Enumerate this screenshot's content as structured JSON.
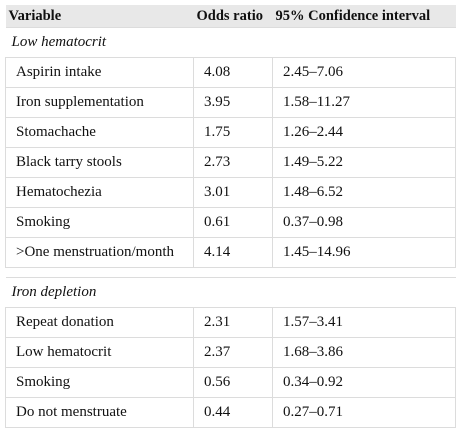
{
  "table": {
    "header": [
      "Variable",
      "Odds ratio",
      "95% Confidence interval"
    ],
    "sections": [
      {
        "title": "Low hematocrit",
        "rows": [
          [
            "Aspirin intake",
            "4.08",
            "2.45–7.06"
          ],
          [
            "Iron supplementation",
            "3.95",
            "1.58–11.27"
          ],
          [
            "Stomachache",
            "1.75",
            "1.26–2.44"
          ],
          [
            "Black tarry stools",
            "2.73",
            "1.49–5.22"
          ],
          [
            "Hematochezia",
            "3.01",
            "1.48–6.52"
          ],
          [
            "Smoking",
            "0.61",
            "0.37–0.98"
          ],
          [
            ">One menstruation/month",
            "4.14",
            "1.45–14.96"
          ]
        ]
      },
      {
        "title": "Iron depletion",
        "rows": [
          [
            "Repeat donation",
            "2.31",
            "1.57–3.41"
          ],
          [
            "Low hematocrit",
            "2.37",
            "1.68–3.86"
          ],
          [
            "Smoking",
            "0.56",
            "0.34–0.92"
          ],
          [
            "Do not menstruate",
            "0.44",
            "0.27–0.71"
          ]
        ]
      }
    ]
  }
}
